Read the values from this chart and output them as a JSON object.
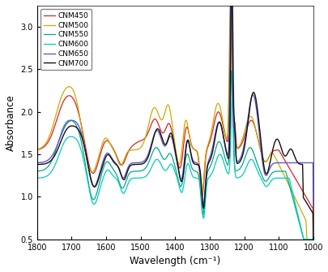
{
  "title": "",
  "xlabel": "Wavelength (cm⁻¹)",
  "ylabel": "Absorbance",
  "xlim": [
    1800,
    1000
  ],
  "ylim": [
    0.5,
    3.25
  ],
  "yticks": [
    0.5,
    1.0,
    1.5,
    2.0,
    2.5,
    3.0
  ],
  "xticks": [
    1800,
    1700,
    1600,
    1500,
    1400,
    1300,
    1200,
    1100,
    1000
  ],
  "series": [
    {
      "label": "CNM450",
      "color": "#dd2222"
    },
    {
      "label": "CNM500",
      "color": "#ccaa00"
    },
    {
      "label": "CNM550",
      "color": "#00aa88"
    },
    {
      "label": "CNM600",
      "color": "#00ccbb"
    },
    {
      "label": "CNM650",
      "color": "#6655cc"
    },
    {
      "label": "CNM700",
      "color": "#111111"
    }
  ],
  "background_color": "#ffffff",
  "legend_fontsize": 6.5,
  "axis_fontsize": 8.5,
  "tick_fontsize": 7
}
